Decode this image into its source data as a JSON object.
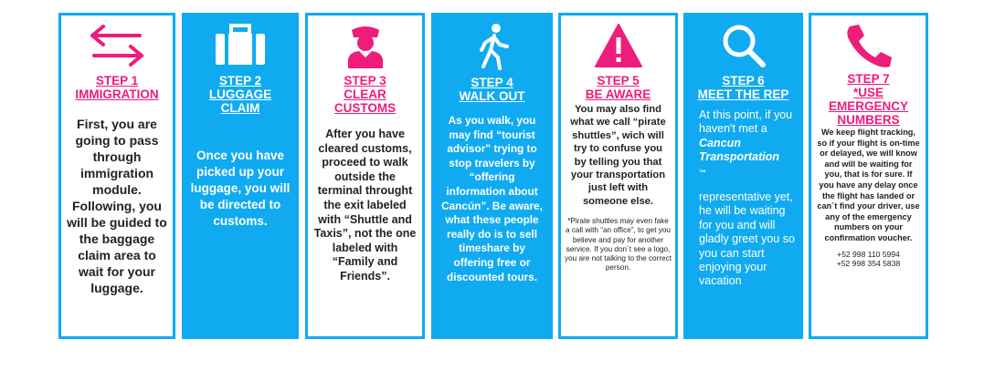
{
  "steps": [
    {
      "step": "STEP 1",
      "title": "IMMIGRATION",
      "icon": "arrows-icon",
      "body": "First, you are going to pass through immigration module. Following, you will be guided to the baggage claim area to wait for your luggage."
    },
    {
      "step": "STEP 2",
      "title": "LUGGAGE",
      "title2": "CLAIM",
      "icon": "luggage-icon",
      "body": "Once you have picked up your luggage, you will be directed to customs."
    },
    {
      "step": "STEP 3",
      "title": "CLEAR",
      "title2": "CUSTOMS",
      "icon": "officer-icon",
      "body": "After you have cleared customs, proceed to walk outside the terminal throught the exit labeled with “Shuttle and Taxis”, not the one labeled with “Family and Friends”."
    },
    {
      "step": "STEP 4",
      "title": "WALK OUT",
      "icon": "walking-person-icon",
      "body": "As you walk, you may find “tourist advisor” trying to stop travelers by “offering information about Cancún”. Be aware, what these people really do is to sell timeshare by offering free or discounted tours."
    },
    {
      "step": "STEP 5",
      "title": "BE AWARE",
      "icon": "warning-icon",
      "body": "You may also find what we call “pirate shuttles”, wich will try to confuse you by telling you that your transportation just left with someone else.",
      "note": "*Pirate shuttles may even fake a call with “an office”, to get you believe and pay for another service. If you don´t see a logo, you are not talking to the correct person."
    },
    {
      "step": "STEP 6",
      "title": "MEET THE REP",
      "icon": "magnifier-icon",
      "body_a": "At this point, if you haven't met a",
      "brand": "Cancun Transportation",
      "tm": "™",
      "body_b": "representative yet, he will be waiting for you and will gladly greet you so you can start enjoying your vacation"
    },
    {
      "step": "STEP 7",
      "title": "*USE",
      "title2": "EMERGENCY",
      "title3": "NUMBERS",
      "icon": "phone-icon",
      "body": "We keep flight tracking, so if your flight is on-time or delayed, we will know and will be waiting for you, that is for sure. If you have any delay once the flight has landed or can´t find your driver, use any of the emergency numbers on your confirmation voucher.",
      "phone1": "+52 998 110 5994",
      "phone2": "+52 998 354 5838"
    }
  ],
  "colors": {
    "accent": "#ee1c7a",
    "blue": "#10aaf0",
    "text": "#222222"
  }
}
